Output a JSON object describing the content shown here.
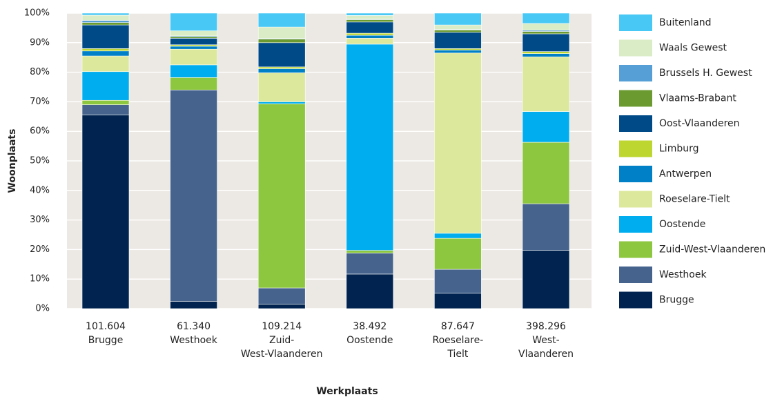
{
  "chart_data": {
    "type": "stacked_bar_100",
    "ylabel": "Woonplaats",
    "xlabel": "Werkplaats",
    "categories": [
      [
        "101.604",
        "Brugge"
      ],
      [
        "61.340",
        "Westhoek"
      ],
      [
        "109.214",
        "Zuid-",
        "West-Vlaanderen"
      ],
      [
        "38.492",
        "Oostende"
      ],
      [
        "87.647",
        "Roeselare-",
        "Tielt"
      ],
      [
        "398.296",
        "West-",
        "Vlaanderen"
      ]
    ],
    "series": [
      {
        "name": "Brugge",
        "color": "#002350",
        "values": [
          65.5,
          2.5,
          1.5,
          11.7,
          5.2,
          19.7
        ]
      },
      {
        "name": "Westhoek",
        "color": "#45638c",
        "values": [
          3.5,
          71.5,
          5.5,
          7.1,
          8.1,
          15.8
        ]
      },
      {
        "name": "Zuid-West-Vlaanderen",
        "color": "#8dc63f",
        "values": [
          1.5,
          4.2,
          62.3,
          0.9,
          10.5,
          20.8
        ]
      },
      {
        "name": "Oostende",
        "color": "#00aeef",
        "values": [
          9.7,
          4.3,
          0.7,
          69.8,
          1.7,
          10.4
        ]
      },
      {
        "name": "Roeselare-Tielt",
        "color": "#dce89b",
        "values": [
          5.3,
          5.3,
          9.8,
          2,
          61,
          18.5
        ]
      },
      {
        "name": "Antwerpen",
        "color": "#0080c6",
        "values": [
          1.7,
          1,
          1.4,
          1,
          1,
          1.1
        ]
      },
      {
        "name": "Limburg",
        "color": "#bdd630",
        "values": [
          0.8,
          0.5,
          0.6,
          0.7,
          0.5,
          0.7
        ]
      },
      {
        "name": "Oost-Vlaanderen",
        "color": "#004a87",
        "values": [
          8,
          2.2,
          8.2,
          3.8,
          5.5,
          6
        ]
      },
      {
        "name": "Vlaams-Brabant",
        "color": "#6a9a30",
        "values": [
          0.8,
          0.5,
          1.2,
          0.8,
          0.8,
          0.8
        ]
      },
      {
        "name": "Brussels H. Gewest",
        "color": "#569fd6",
        "values": [
          0.7,
          0.3,
          0.2,
          0.2,
          0.2,
          0.4
        ]
      },
      {
        "name": "Waals Gewest",
        "color": "#d9ecc6",
        "values": [
          1.8,
          1.7,
          3.9,
          1.2,
          1.5,
          2.3
        ]
      },
      {
        "name": "Buitenland",
        "color": "#48c8f5",
        "values": [
          0.7,
          6,
          4.7,
          0.8,
          4,
          3.5
        ]
      }
    ],
    "ylim": [
      0,
      100
    ],
    "yticks": [
      {
        "value": 0,
        "label": "0%"
      },
      {
        "value": 10,
        "label": "10%"
      },
      {
        "value": 20,
        "label": "20%"
      },
      {
        "value": 30,
        "label": "30%"
      },
      {
        "value": 40,
        "label": "40%"
      },
      {
        "value": 50,
        "label": "50%"
      },
      {
        "value": 60,
        "label": "60%"
      },
      {
        "value": 70,
        "label": "70%"
      },
      {
        "value": 80,
        "label": "80%"
      },
      {
        "value": 90,
        "label": "90%"
      },
      {
        "value": 100,
        "label": "100%"
      }
    ],
    "grid": true,
    "legend": "right"
  }
}
